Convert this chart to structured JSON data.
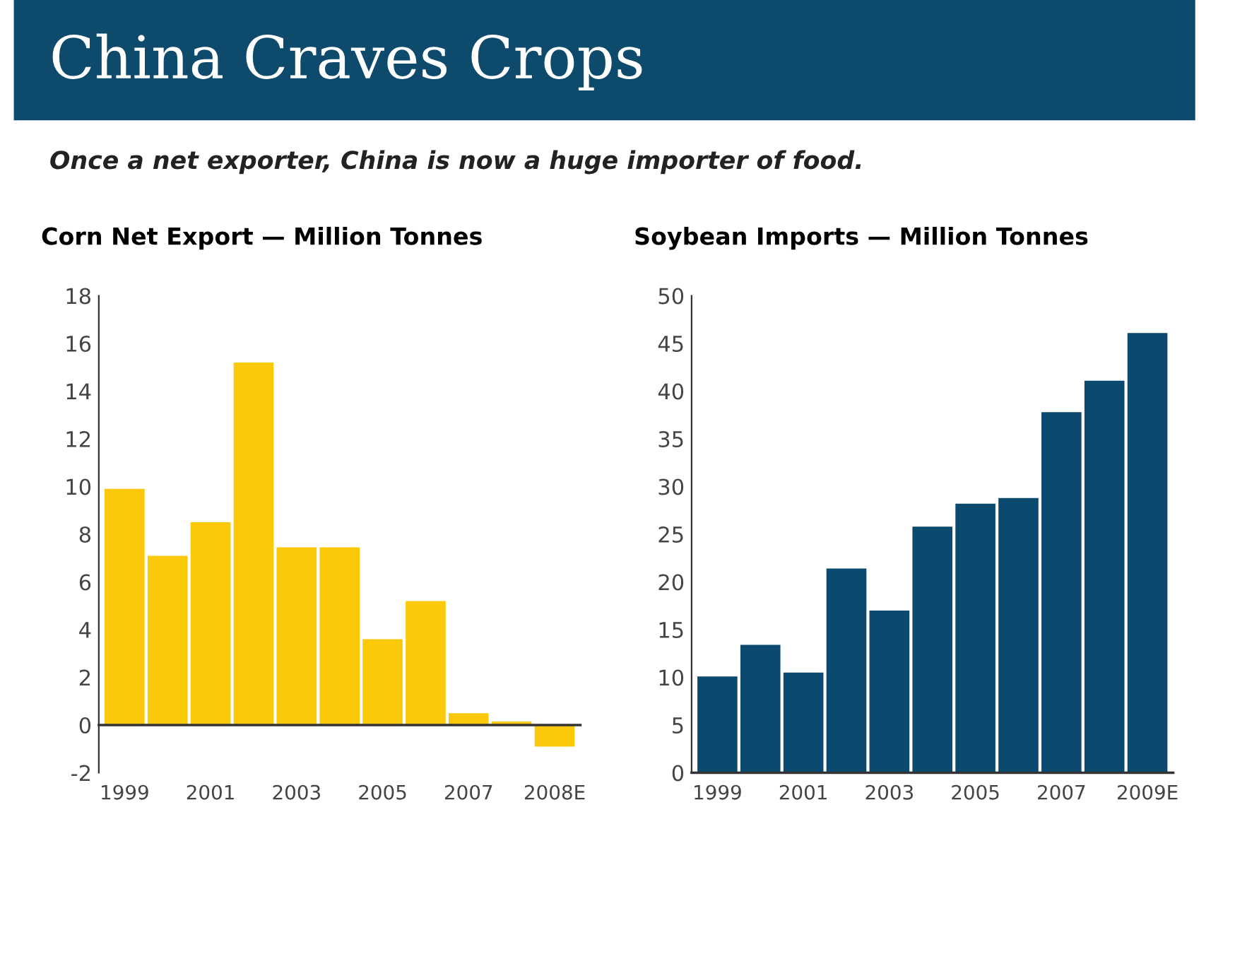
{
  "chart_data": [
    {
      "type": "other",
      "title": "China Craves Crops",
      "subtitle": "Once a net exporter, China is now a huge importer of food.",
      "color": "#0d4a6b"
    },
    {
      "type": "bar",
      "title": "Corn Net Export — Million Tonnes",
      "categories": [
        "1999",
        null,
        "2001",
        null,
        "2003",
        null,
        "2005",
        null,
        "2007",
        null,
        "2008E"
      ],
      "values": [
        9.9,
        7.1,
        8.5,
        15.2,
        7.45,
        7.45,
        3.6,
        5.2,
        0.5,
        0.15,
        -0.9
      ],
      "color": "#fcc80a",
      "ylim": [
        -2,
        18
      ],
      "yticks": [
        -2,
        0,
        2,
        4,
        6,
        8,
        10,
        12,
        14,
        16,
        18
      ]
    },
    {
      "type": "bar",
      "title": "Soybean Imports — Million Tonnes",
      "categories": [
        "1999",
        null,
        "2001",
        null,
        "2003",
        null,
        "2005",
        null,
        "2007",
        null,
        "2009E"
      ],
      "values": [
        10.1,
        13.4,
        10.5,
        21.4,
        17.0,
        25.8,
        28.2,
        28.8,
        37.8,
        41.1,
        46.1
      ],
      "color": "#0b4a6e",
      "ylim": [
        0,
        50
      ],
      "yticks": [
        0,
        5,
        10,
        15,
        20,
        25,
        30,
        35,
        40,
        45,
        50
      ]
    }
  ]
}
